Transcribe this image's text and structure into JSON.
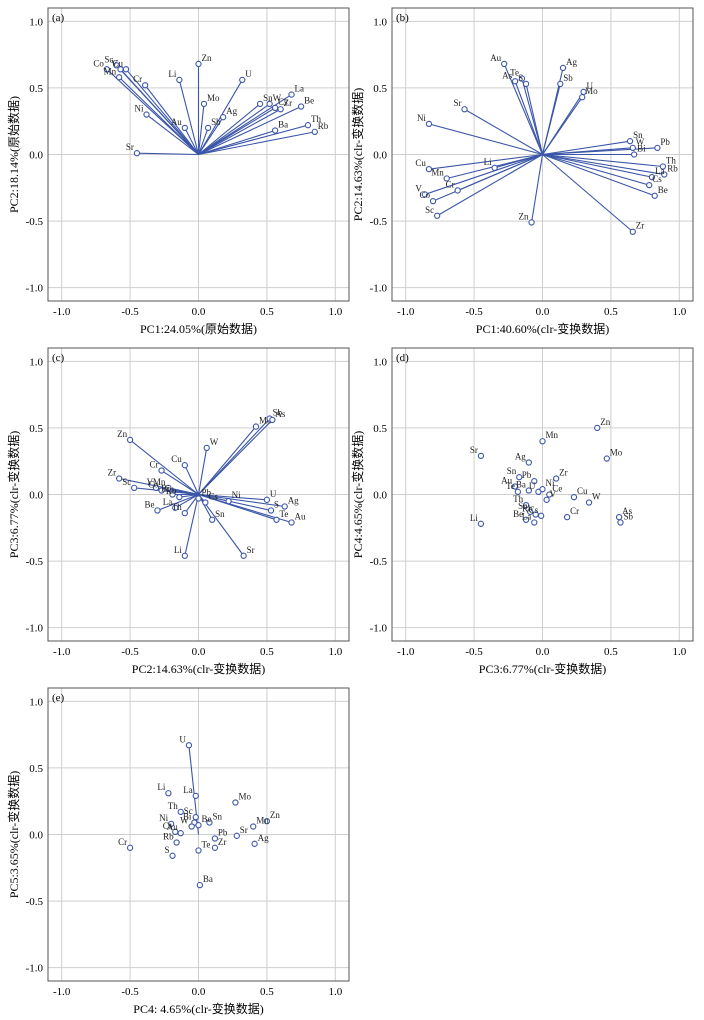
{
  "chart_data": [
    {
      "type": "scatter",
      "panel_label": "(a)",
      "xlabel": "PC1:24.05%(原始数据)",
      "ylabel": "PC2:18.14%(原始数据)",
      "xlim": [
        -1.1,
        1.1
      ],
      "ylim": [
        -1.1,
        1.1
      ],
      "ticks": [
        "-1.0",
        "-0.5",
        "0.0",
        "0.5",
        "1.0"
      ],
      "grid": true,
      "vectors": true,
      "points": [
        {
          "label": "Co",
          "x": -0.67,
          "y": 0.64
        },
        {
          "label": "Sc",
          "x": -0.6,
          "y": 0.67
        },
        {
          "label": "V",
          "x": -0.57,
          "y": 0.64
        },
        {
          "label": "Cu",
          "x": -0.53,
          "y": 0.64
        },
        {
          "label": "Mn",
          "x": -0.58,
          "y": 0.58
        },
        {
          "label": "Cr",
          "x": -0.39,
          "y": 0.52
        },
        {
          "label": "Li",
          "x": -0.14,
          "y": 0.56
        },
        {
          "label": "Zn",
          "x": 0.0,
          "y": 0.68
        },
        {
          "label": "U",
          "x": 0.32,
          "y": 0.56
        },
        {
          "label": "Ni",
          "x": -0.38,
          "y": 0.3
        },
        {
          "label": "Au",
          "x": -0.1,
          "y": 0.2
        },
        {
          "label": "Sr",
          "x": -0.45,
          "y": 0.01
        },
        {
          "label": "Mo",
          "x": 0.04,
          "y": 0.38
        },
        {
          "label": "Sb",
          "x": 0.07,
          "y": 0.2
        },
        {
          "label": "Ag",
          "x": 0.18,
          "y": 0.28
        },
        {
          "label": "Sn",
          "x": 0.45,
          "y": 0.38
        },
        {
          "label": "W",
          "x": 0.52,
          "y": 0.38
        },
        {
          "label": "Cs",
          "x": 0.56,
          "y": 0.35
        },
        {
          "label": "Zr",
          "x": 0.6,
          "y": 0.34
        },
        {
          "label": "La",
          "x": 0.68,
          "y": 0.45
        },
        {
          "label": "Be",
          "x": 0.75,
          "y": 0.36
        },
        {
          "label": "Ba",
          "x": 0.56,
          "y": 0.18
        },
        {
          "label": "Th",
          "x": 0.8,
          "y": 0.22
        },
        {
          "label": "Rb",
          "x": 0.85,
          "y": 0.17
        }
      ]
    },
    {
      "type": "scatter",
      "panel_label": "(b)",
      "xlabel": "PC1:40.60%(clr-变换数据)",
      "ylabel": "PC2:14.63%(clr-变换数据)",
      "xlim": [
        -1.1,
        1.1
      ],
      "ylim": [
        -1.1,
        1.1
      ],
      "ticks": [
        "-1.0",
        "-0.5",
        "0.0",
        "0.5",
        "1.0"
      ],
      "grid": true,
      "vectors": true,
      "points": [
        {
          "label": "Au",
          "x": -0.28,
          "y": 0.68
        },
        {
          "label": "As",
          "x": -0.2,
          "y": 0.55
        },
        {
          "label": "Te",
          "x": -0.15,
          "y": 0.57
        },
        {
          "label": "S",
          "x": -0.12,
          "y": 0.53
        },
        {
          "label": "Ag",
          "x": 0.15,
          "y": 0.65
        },
        {
          "label": "Sb",
          "x": 0.13,
          "y": 0.53
        },
        {
          "label": "U",
          "x": 0.3,
          "y": 0.47
        },
        {
          "label": "Mo",
          "x": 0.29,
          "y": 0.43
        },
        {
          "label": "Sr",
          "x": -0.57,
          "y": 0.34
        },
        {
          "label": "Ni",
          "x": -0.83,
          "y": 0.23
        },
        {
          "label": "Cu",
          "x": -0.83,
          "y": -0.11
        },
        {
          "label": "Mn",
          "x": -0.7,
          "y": -0.18
        },
        {
          "label": "Li",
          "x": -0.35,
          "y": -0.1
        },
        {
          "label": "V",
          "x": -0.86,
          "y": -0.3
        },
        {
          "label": "Co",
          "x": -0.8,
          "y": -0.35
        },
        {
          "label": "Cr",
          "x": -0.62,
          "y": -0.27
        },
        {
          "label": "Sc",
          "x": -0.77,
          "y": -0.46
        },
        {
          "label": "Zn",
          "x": -0.08,
          "y": -0.51
        },
        {
          "label": "Zr",
          "x": 0.66,
          "y": -0.58
        },
        {
          "label": "Sn",
          "x": 0.64,
          "y": 0.1
        },
        {
          "label": "W",
          "x": 0.66,
          "y": 0.05
        },
        {
          "label": "Pb",
          "x": 0.84,
          "y": 0.05
        },
        {
          "label": "Bi",
          "x": 0.67,
          "y": 0.0
        },
        {
          "label": "Th",
          "x": 0.88,
          "y": -0.09
        },
        {
          "label": "Rb",
          "x": 0.89,
          "y": -0.15
        },
        {
          "label": "La",
          "x": 0.8,
          "y": -0.17
        },
        {
          "label": "Cs",
          "x": 0.78,
          "y": -0.23
        },
        {
          "label": "Be",
          "x": 0.82,
          "y": -0.31
        }
      ]
    },
    {
      "type": "scatter",
      "panel_label": "(c)",
      "xlabel": "PC2:14.63%(clr-变换数据)",
      "ylabel": "PC3:6.77%(clr-变换数据)",
      "xlim": [
        -1.1,
        1.1
      ],
      "ylim": [
        -1.1,
        1.1
      ],
      "ticks": [
        "-1.0",
        "-0.5",
        "0.0",
        "0.5",
        "1.0"
      ],
      "grid": true,
      "vectors": true,
      "points": [
        {
          "label": "Zn",
          "x": -0.5,
          "y": 0.41
        },
        {
          "label": "Cu",
          "x": -0.1,
          "y": 0.22
        },
        {
          "label": "Cr",
          "x": -0.27,
          "y": 0.18
        },
        {
          "label": "W",
          "x": 0.06,
          "y": 0.35
        },
        {
          "label": "Zr",
          "x": -0.58,
          "y": 0.12
        },
        {
          "label": "Sc",
          "x": -0.47,
          "y": 0.05
        },
        {
          "label": "V",
          "x": -0.31,
          "y": 0.05
        },
        {
          "label": "Co",
          "x": -0.27,
          "y": 0.03
        },
        {
          "label": "Mn",
          "x": -0.22,
          "y": 0.05
        },
        {
          "label": "Bi",
          "x": -0.19,
          "y": 0.0
        },
        {
          "label": "Rb",
          "x": -0.14,
          "y": -0.02
        },
        {
          "label": "Be",
          "x": -0.3,
          "y": -0.12
        },
        {
          "label": "La",
          "x": -0.17,
          "y": -0.1
        },
        {
          "label": "Th",
          "x": -0.1,
          "y": -0.14
        },
        {
          "label": "Li",
          "x": -0.1,
          "y": -0.46
        },
        {
          "label": "Sn",
          "x": 0.1,
          "y": -0.19
        },
        {
          "label": "Sr",
          "x": 0.33,
          "y": -0.46
        },
        {
          "label": "Ni",
          "x": 0.22,
          "y": -0.05
        },
        {
          "label": "Mo",
          "x": 0.42,
          "y": 0.51
        },
        {
          "label": "Sb",
          "x": 0.52,
          "y": 0.57
        },
        {
          "label": "As",
          "x": 0.54,
          "y": 0.56
        },
        {
          "label": "U",
          "x": 0.5,
          "y": -0.04
        },
        {
          "label": "S",
          "x": 0.53,
          "y": -0.12
        },
        {
          "label": "Ag",
          "x": 0.63,
          "y": -0.09
        },
        {
          "label": "Te",
          "x": 0.57,
          "y": -0.19
        },
        {
          "label": "Au",
          "x": 0.68,
          "y": -0.21
        },
        {
          "label": "Pb",
          "x": 0.0,
          "y": -0.03
        },
        {
          "label": "Cs",
          "x": 0.05,
          "y": -0.06
        }
      ]
    },
    {
      "type": "scatter",
      "panel_label": "(d)",
      "xlabel": "PC3:6.77%(clr-变换数据)",
      "ylabel": "PC4:4.65%(clr-变换数据)",
      "xlim": [
        -1.1,
        1.1
      ],
      "ylim": [
        -1.1,
        1.1
      ],
      "ticks": [
        "-1.0",
        "-0.5",
        "0.0",
        "0.5",
        "1.0"
      ],
      "grid": true,
      "vectors": false,
      "points": [
        {
          "label": "Zn",
          "x": 0.4,
          "y": 0.5
        },
        {
          "label": "Mn",
          "x": 0.0,
          "y": 0.4
        },
        {
          "label": "Mo",
          "x": 0.47,
          "y": 0.27
        },
        {
          "label": "Sr",
          "x": -0.45,
          "y": 0.29
        },
        {
          "label": "Ag",
          "x": -0.1,
          "y": 0.24
        },
        {
          "label": "Sn",
          "x": -0.17,
          "y": 0.13
        },
        {
          "label": "Pb",
          "x": -0.06,
          "y": 0.1
        },
        {
          "label": "Zr",
          "x": 0.1,
          "y": 0.12
        },
        {
          "label": "Au",
          "x": -0.2,
          "y": 0.06
        },
        {
          "label": "Te",
          "x": -0.18,
          "y": 0.02
        },
        {
          "label": "Ba",
          "x": -0.1,
          "y": 0.03
        },
        {
          "label": "U",
          "x": -0.03,
          "y": 0.02
        },
        {
          "label": "Ni",
          "x": 0.0,
          "y": 0.04
        },
        {
          "label": "Ce",
          "x": 0.05,
          "y": 0.0
        },
        {
          "label": "V",
          "x": 0.03,
          "y": -0.04
        },
        {
          "label": "Cu",
          "x": 0.23,
          "y": -0.02
        },
        {
          "label": "W",
          "x": 0.34,
          "y": -0.06
        },
        {
          "label": "Th",
          "x": -0.12,
          "y": -0.08
        },
        {
          "label": "Sc",
          "x": -0.09,
          "y": -0.13
        },
        {
          "label": "Rb",
          "x": -0.05,
          "y": -0.15
        },
        {
          "label": "Cs",
          "x": -0.01,
          "y": -0.16
        },
        {
          "label": "Be",
          "x": -0.12,
          "y": -0.19
        },
        {
          "label": "La",
          "x": -0.06,
          "y": -0.21
        },
        {
          "label": "Cr",
          "x": 0.18,
          "y": -0.17
        },
        {
          "label": "As",
          "x": 0.56,
          "y": -0.17
        },
        {
          "label": "Sb",
          "x": 0.57,
          "y": -0.21
        },
        {
          "label": "Li",
          "x": -0.45,
          "y": -0.22
        }
      ]
    },
    {
      "type": "scatter",
      "panel_label": "(e)",
      "xlabel": "PC4: 4.65%(clr-变换数据)",
      "ylabel": "PC5:3.65%(clr-变换数据)",
      "xlim": [
        -1.1,
        1.1
      ],
      "ylim": [
        -1.1,
        1.1
      ],
      "ticks": [
        "-1.0",
        "-0.5",
        "0.0",
        "0.5",
        "1.0"
      ],
      "grid": true,
      "vectors": false,
      "anchor_vector": "U",
      "points": [
        {
          "label": "U",
          "x": -0.07,
          "y": 0.67
        },
        {
          "label": "Li",
          "x": -0.22,
          "y": 0.31
        },
        {
          "label": "La",
          "x": -0.02,
          "y": 0.29
        },
        {
          "label": "Mo",
          "x": 0.27,
          "y": 0.24
        },
        {
          "label": "Th",
          "x": -0.13,
          "y": 0.17
        },
        {
          "label": "Sc",
          "x": -0.02,
          "y": 0.13
        },
        {
          "label": "Sn",
          "x": 0.08,
          "y": 0.09
        },
        {
          "label": "Zn",
          "x": 0.5,
          "y": 0.1
        },
        {
          "label": "Mn",
          "x": 0.4,
          "y": 0.06
        },
        {
          "label": "Ni",
          "x": -0.2,
          "y": 0.08
        },
        {
          "label": "Bi",
          "x": -0.03,
          "y": 0.09
        },
        {
          "label": "W",
          "x": -0.05,
          "y": 0.06
        },
        {
          "label": "Be",
          "x": 0.0,
          "y": 0.07
        },
        {
          "label": "Cs",
          "x": -0.17,
          "y": 0.02
        },
        {
          "label": "Au",
          "x": -0.13,
          "y": 0.01
        },
        {
          "label": "Cr",
          "x": -0.5,
          "y": -0.1
        },
        {
          "label": "Rb",
          "x": -0.16,
          "y": -0.06
        },
        {
          "label": "S",
          "x": -0.19,
          "y": -0.16
        },
        {
          "label": "Pb",
          "x": 0.12,
          "y": -0.03
        },
        {
          "label": "Sr",
          "x": 0.28,
          "y": -0.01
        },
        {
          "label": "Ag",
          "x": 0.41,
          "y": -0.07
        },
        {
          "label": "Te",
          "x": 0.0,
          "y": -0.12
        },
        {
          "label": "Zr",
          "x": 0.12,
          "y": -0.1
        },
        {
          "label": "Ba",
          "x": 0.01,
          "y": -0.38
        }
      ]
    }
  ]
}
